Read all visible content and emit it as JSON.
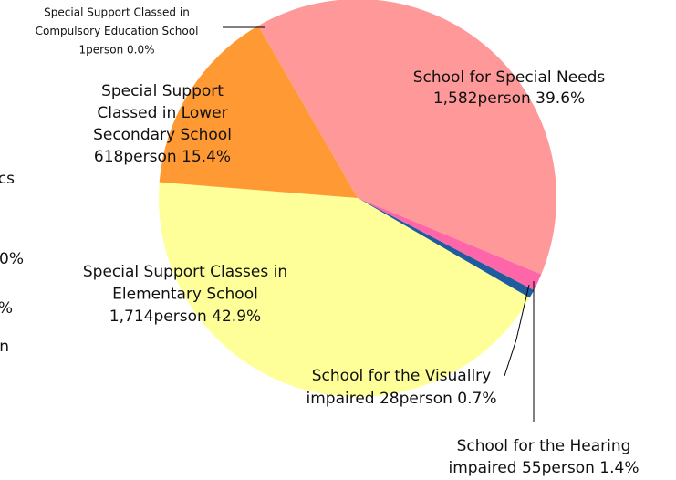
{
  "chart_data": {
    "type": "pie",
    "categories": [
      [
        "School for Special Needs",
        "1,582person 39.6%"
      ],
      [
        "School for the Hearing",
        "impaired 55person 1.4%"
      ],
      [
        "School for the Visuallry",
        "impaired 28person 0.7%"
      ],
      [
        "Special Support Classes in",
        "Elementary School",
        "1,714person 42.9%"
      ],
      [
        "Special Support",
        "Classed in Lower",
        "Secondary School",
        "618person 15.4%"
      ],
      [
        "Special Support Classed in",
        "Compulsory Education School",
        "1person 0.0%"
      ]
    ],
    "values": [
      39.6,
      1.4,
      0.7,
      42.9,
      15.4,
      0.0
    ],
    "colors": [
      "#ff9999",
      "#ff66aa",
      "#1f5c9e",
      "#ffff99",
      "#ff9933",
      "#cccccc"
    ],
    "clipped_texts": [
      "cs",
      "0%",
      "%",
      "n"
    ]
  }
}
